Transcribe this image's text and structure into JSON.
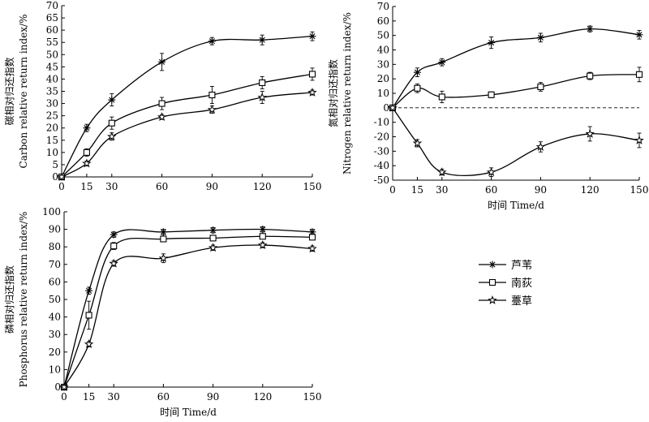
{
  "chart_data": [
    {
      "type": "line",
      "id": "carbon",
      "x": [
        0,
        15,
        30,
        60,
        90,
        120,
        150
      ],
      "ylabel_cn": "碳相对归还指数",
      "ylabel_en": "Carbon relative return index/%",
      "xlabel": "",
      "ylim": [
        0,
        70
      ],
      "yticks": [
        0,
        5,
        10,
        15,
        20,
        25,
        30,
        35,
        40,
        45,
        50,
        55,
        60,
        65,
        70
      ],
      "xticks": [
        0,
        15,
        30,
        60,
        90,
        120,
        150
      ],
      "series": [
        {
          "name": "芦苇",
          "marker": "asterisk",
          "values": [
            0,
            20,
            31.5,
            47,
            55.5,
            56,
            57.5
          ],
          "errors": [
            0.5,
            1.5,
            2.5,
            3.5,
            1.5,
            2,
            1.8
          ]
        },
        {
          "name": "南荻",
          "marker": "square",
          "values": [
            0,
            10,
            22,
            30,
            33.5,
            38.5,
            42
          ],
          "errors": [
            0.5,
            1.5,
            2.5,
            2.5,
            3.5,
            2.5,
            2.5
          ]
        },
        {
          "name": "薹草",
          "marker": "star",
          "values": [
            0,
            5.5,
            16.5,
            24.5,
            27.5,
            32.5,
            34.5
          ],
          "errors": [
            0.5,
            1,
            1.5,
            1,
            1.5,
            2.5,
            1
          ]
        }
      ]
    },
    {
      "type": "line",
      "id": "nitrogen",
      "x": [
        0,
        15,
        30,
        60,
        90,
        120,
        150
      ],
      "ylabel_cn": "氮相对归还指数",
      "ylabel_en": "Nitrogen relative return index/%",
      "xlabel": "时间 Time/d",
      "ylim": [
        -50,
        70
      ],
      "yticks": [
        -50,
        -40,
        -30,
        -20,
        -10,
        0,
        10,
        20,
        30,
        40,
        50,
        60,
        70
      ],
      "xticks": [
        0,
        15,
        30,
        60,
        90,
        120,
        150
      ],
      "zero_line": "dashed",
      "series": [
        {
          "name": "芦苇",
          "marker": "asterisk",
          "values": [
            0,
            24.5,
            31.5,
            45,
            48.5,
            54.5,
            50.5
          ],
          "errors": [
            1,
            3,
            2.5,
            4,
            3,
            2,
            3
          ]
        },
        {
          "name": "南荻",
          "marker": "square",
          "values": [
            0,
            13.5,
            7.5,
            9,
            14.5,
            22,
            23
          ],
          "errors": [
            1,
            3,
            4,
            2,
            3,
            2.5,
            5
          ]
        },
        {
          "name": "薹草",
          "marker": "star",
          "values": [
            0,
            -24.5,
            -44.5,
            -44.5,
            -27,
            -18,
            -22.5
          ],
          "errors": [
            1,
            2.5,
            2,
            3,
            3.5,
            5,
            5
          ]
        }
      ]
    },
    {
      "type": "line",
      "id": "phosphorus",
      "x": [
        0,
        15,
        30,
        60,
        90,
        120,
        150
      ],
      "ylabel_cn": "磷相对归还指数",
      "ylabel_en": "Phosphorus relative return index/%",
      "xlabel": "时间 Time/d",
      "ylim": [
        0,
        100
      ],
      "yticks": [
        0,
        10,
        20,
        30,
        40,
        50,
        60,
        70,
        80,
        90,
        100
      ],
      "xticks": [
        0,
        15,
        30,
        60,
        90,
        120,
        150
      ],
      "series": [
        {
          "name": "芦苇",
          "marker": "asterisk",
          "values": [
            0,
            55,
            87,
            88.5,
            89.5,
            90,
            88.5
          ],
          "errors": [
            1,
            2,
            1.5,
            1.5,
            1.5,
            1.5,
            1.5
          ]
        },
        {
          "name": "南荻",
          "marker": "square",
          "values": [
            0,
            41,
            80.5,
            84.5,
            85,
            86,
            85.5
          ],
          "errors": [
            1,
            8,
            2,
            1.5,
            1.5,
            1.5,
            1.5
          ]
        },
        {
          "name": "薹草",
          "marker": "star",
          "values": [
            0,
            24.5,
            70.5,
            73.5,
            79.5,
            81,
            79
          ],
          "errors": [
            1,
            1.5,
            1.5,
            2.5,
            1.5,
            1.5,
            1.5
          ]
        }
      ]
    }
  ],
  "legend": {
    "placement": "middle-right",
    "entries": [
      {
        "label": "芦苇",
        "marker": "asterisk"
      },
      {
        "label": "南荻",
        "marker": "square"
      },
      {
        "label": "薹草",
        "marker": "star"
      }
    ]
  }
}
